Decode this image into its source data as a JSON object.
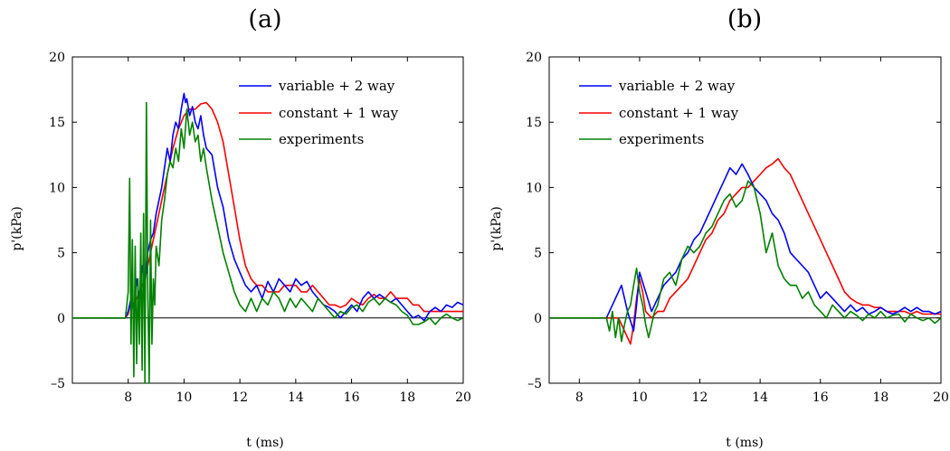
{
  "chart_data": [
    {
      "type": "line",
      "panel_label": "(a)",
      "xlabel": "t (ms)",
      "ylabel": "p'(kPa)",
      "xlim": [
        6.0,
        20.0
      ],
      "ylim": [
        -5,
        20
      ],
      "xticks": [
        8,
        10,
        12,
        14,
        16,
        18,
        20
      ],
      "yticks": [
        -5,
        0,
        5,
        10,
        15,
        20
      ],
      "ytick_labels": [
        "–5",
        "0",
        "5",
        "10",
        "15",
        "20"
      ],
      "legend_position": "top-right",
      "series": [
        {
          "name": "variable  + 2 way",
          "color": "#0000ff",
          "x": [
            6.0,
            7.9,
            8.0,
            8.1,
            8.2,
            8.3,
            8.4,
            8.5,
            8.6,
            8.7,
            8.8,
            8.9,
            9.0,
            9.2,
            9.4,
            9.5,
            9.6,
            9.7,
            9.8,
            9.9,
            10.0,
            10.05,
            10.1,
            10.2,
            10.3,
            10.4,
            10.5,
            10.6,
            10.7,
            10.8,
            11.0,
            11.2,
            11.4,
            11.6,
            11.8,
            12.0,
            12.2,
            12.4,
            12.6,
            12.8,
            13.0,
            13.2,
            13.4,
            13.6,
            13.8,
            14.0,
            14.2,
            14.4,
            14.6,
            14.8,
            15.0,
            15.2,
            15.4,
            15.6,
            15.8,
            16.0,
            16.2,
            16.4,
            16.6,
            16.8,
            17.0,
            17.2,
            17.4,
            17.6,
            17.8,
            18.0,
            18.2,
            18.4,
            18.6,
            18.8,
            19.0,
            19.2,
            19.4,
            19.6,
            19.8,
            20.0
          ],
          "y": [
            0,
            0,
            0.5,
            1.5,
            0.5,
            3.0,
            1.5,
            4.0,
            2.5,
            5.0,
            6.0,
            6.5,
            8.0,
            10.0,
            13.0,
            12.0,
            14.0,
            15.0,
            14.5,
            16.0,
            17.2,
            16.5,
            16.8,
            15.5,
            16.2,
            15.0,
            14.5,
            15.5,
            14.0,
            13.0,
            12.5,
            10.0,
            8.5,
            6.0,
            4.5,
            3.5,
            2.5,
            2.0,
            2.5,
            1.5,
            2.8,
            2.0,
            3.0,
            2.5,
            2.0,
            3.0,
            2.5,
            2.8,
            2.0,
            1.5,
            1.0,
            0.8,
            0.5,
            0.0,
            0.5,
            1.0,
            0.5,
            1.5,
            2.0,
            1.5,
            1.8,
            1.5,
            1.2,
            1.5,
            1.0,
            0.5,
            0.0,
            0.2,
            -0.2,
            0.5,
            0.8,
            0.5,
            1.0,
            0.8,
            1.2,
            1.0
          ]
        },
        {
          "name": "constant + 1 way",
          "color": "#ff0000",
          "x": [
            6.0,
            7.9,
            8.0,
            8.1,
            8.2,
            8.4,
            8.6,
            8.8,
            9.0,
            9.2,
            9.4,
            9.6,
            9.8,
            10.0,
            10.2,
            10.4,
            10.6,
            10.8,
            11.0,
            11.2,
            11.4,
            11.6,
            11.8,
            12.0,
            12.2,
            12.4,
            12.6,
            12.8,
            13.0,
            13.2,
            13.4,
            13.6,
            13.8,
            14.0,
            14.2,
            14.4,
            14.6,
            14.8,
            15.0,
            15.2,
            15.4,
            15.6,
            15.8,
            16.0,
            16.2,
            16.4,
            16.6,
            16.8,
            17.0,
            17.2,
            17.4,
            17.6,
            17.8,
            18.0,
            18.2,
            18.4,
            18.6,
            18.8,
            19.0,
            19.2,
            19.4,
            19.6,
            19.8,
            20.0
          ],
          "y": [
            0,
            0,
            0.3,
            1.5,
            1.0,
            2.0,
            3.0,
            5.0,
            7.0,
            9.0,
            11.0,
            13.0,
            14.5,
            15.5,
            16.0,
            16.0,
            16.4,
            16.5,
            16.0,
            15.0,
            13.5,
            11.0,
            8.5,
            6.0,
            4.0,
            3.0,
            2.5,
            2.5,
            2.0,
            2.0,
            2.0,
            2.5,
            2.5,
            2.5,
            2.0,
            2.0,
            2.5,
            2.0,
            1.5,
            1.0,
            1.0,
            0.8,
            1.0,
            1.5,
            1.2,
            1.0,
            1.5,
            1.8,
            1.5,
            1.5,
            2.0,
            1.5,
            1.5,
            1.5,
            1.0,
            1.0,
            0.5,
            0.5,
            0.5,
            0.5,
            0.5,
            0.5,
            0.5,
            0.5
          ]
        },
        {
          "name": "experiments",
          "color": "#008000",
          "x": [
            6.0,
            7.9,
            8.0,
            8.05,
            8.1,
            8.15,
            8.2,
            8.25,
            8.3,
            8.35,
            8.4,
            8.45,
            8.5,
            8.55,
            8.6,
            8.65,
            8.7,
            8.75,
            8.8,
            8.85,
            8.9,
            8.95,
            9.0,
            9.1,
            9.2,
            9.3,
            9.4,
            9.5,
            9.6,
            9.7,
            9.8,
            9.9,
            10.0,
            10.1,
            10.2,
            10.3,
            10.4,
            10.5,
            10.6,
            10.7,
            10.8,
            11.0,
            11.2,
            11.4,
            11.6,
            11.8,
            12.0,
            12.2,
            12.4,
            12.6,
            12.8,
            13.0,
            13.2,
            13.4,
            13.6,
            13.8,
            14.0,
            14.2,
            14.4,
            14.6,
            14.8,
            15.0,
            15.2,
            15.4,
            15.6,
            15.8,
            16.0,
            16.2,
            16.4,
            16.6,
            16.8,
            17.0,
            17.2,
            17.4,
            17.6,
            17.8,
            18.0,
            18.2,
            18.4,
            18.6,
            18.8,
            19.0,
            19.2,
            19.4,
            19.6,
            19.8,
            20.0
          ],
          "y": [
            0,
            0,
            2.0,
            10.7,
            -2.0,
            6.0,
            -4.5,
            5.5,
            -3.5,
            3.0,
            -2.0,
            6.5,
            -4.0,
            8.0,
            -5.0,
            16.5,
            2.0,
            -5.0,
            7.5,
            -2.0,
            3.0,
            1.0,
            5.5,
            4.0,
            7.5,
            9.0,
            11.0,
            12.0,
            11.5,
            13.0,
            12.0,
            14.5,
            13.0,
            16.0,
            14.0,
            15.0,
            13.5,
            14.0,
            12.0,
            13.0,
            11.5,
            9.0,
            7.0,
            5.0,
            3.5,
            2.0,
            1.0,
            0.5,
            1.5,
            0.5,
            1.5,
            1.0,
            2.0,
            1.5,
            0.5,
            1.5,
            0.8,
            1.5,
            1.0,
            0.5,
            1.5,
            1.0,
            0.5,
            0.0,
            0.5,
            0.3,
            0.8,
            1.0,
            0.5,
            1.2,
            1.5,
            1.0,
            1.5,
            1.2,
            1.0,
            0.5,
            0.2,
            -0.5,
            -0.5,
            -0.3,
            0.0,
            -0.5,
            0.0,
            0.3,
            0.0,
            -0.2,
            0.0
          ]
        },
        {
          "name": "",
          "color": "#000000",
          "x": [
            6.0,
            20.0
          ],
          "y": [
            0,
            0
          ]
        }
      ]
    },
    {
      "type": "line",
      "panel_label": "(b)",
      "xlabel": "t (ms)",
      "ylabel": "p'(kPa)",
      "xlim": [
        7.0,
        20.0
      ],
      "ylim": [
        -5,
        20
      ],
      "xticks": [
        8,
        10,
        12,
        14,
        16,
        18,
        20
      ],
      "yticks": [
        -5,
        0,
        5,
        10,
        15,
        20
      ],
      "ytick_labels": [
        "–5",
        "0",
        "5",
        "10",
        "15",
        "20"
      ],
      "legend_position": "top-left",
      "series": [
        {
          "name": "variable + 2 way",
          "color": "#0000ff",
          "x": [
            7.0,
            8.9,
            9.0,
            9.2,
            9.4,
            9.6,
            9.8,
            9.9,
            10.0,
            10.2,
            10.4,
            10.6,
            10.8,
            11.0,
            11.2,
            11.4,
            11.6,
            11.8,
            12.0,
            12.2,
            12.4,
            12.6,
            12.8,
            13.0,
            13.2,
            13.4,
            13.6,
            13.8,
            14.0,
            14.2,
            14.4,
            14.6,
            14.8,
            15.0,
            15.2,
            15.4,
            15.6,
            15.8,
            16.0,
            16.2,
            16.4,
            16.6,
            16.8,
            17.0,
            17.2,
            17.4,
            17.6,
            17.8,
            18.0,
            18.2,
            18.4,
            18.6,
            18.8,
            19.0,
            19.2,
            19.4,
            19.6,
            19.8,
            20.0
          ],
          "y": [
            0,
            0,
            0.5,
            1.5,
            2.5,
            0.5,
            -1.0,
            1.0,
            3.5,
            2.0,
            0.5,
            1.5,
            2.5,
            3.0,
            3.5,
            4.5,
            5.0,
            6.0,
            6.5,
            7.5,
            8.5,
            9.5,
            10.5,
            11.5,
            11.0,
            11.8,
            11.0,
            10.0,
            9.5,
            9.0,
            8.0,
            7.5,
            6.5,
            5.0,
            4.5,
            4.0,
            3.5,
            2.5,
            1.5,
            2.0,
            1.5,
            1.0,
            0.5,
            1.0,
            0.5,
            0.8,
            0.3,
            0.5,
            0.8,
            0.5,
            0.3,
            0.5,
            0.8,
            0.5,
            0.8,
            0.5,
            0.5,
            0.3,
            0.5
          ]
        },
        {
          "name": "constant + 1 way",
          "color": "#ff0000",
          "x": [
            7.0,
            9.3,
            9.4,
            9.6,
            9.7,
            9.8,
            9.9,
            10.0,
            10.1,
            10.2,
            10.4,
            10.6,
            10.8,
            11.0,
            11.2,
            11.4,
            11.6,
            11.8,
            12.0,
            12.2,
            12.4,
            12.6,
            12.8,
            13.0,
            13.2,
            13.4,
            13.6,
            13.8,
            14.0,
            14.2,
            14.4,
            14.6,
            14.8,
            15.0,
            15.2,
            15.4,
            15.6,
            15.8,
            16.0,
            16.2,
            16.4,
            16.6,
            16.8,
            17.0,
            17.2,
            17.4,
            17.6,
            17.8,
            18.0,
            18.2,
            18.4,
            18.6,
            18.8,
            19.0,
            19.2,
            19.4,
            19.6,
            19.8,
            20.0
          ],
          "y": [
            0,
            0,
            -0.5,
            -1.5,
            -2.0,
            -0.5,
            1.5,
            3.0,
            2.0,
            0.5,
            0.0,
            0.5,
            0.5,
            1.5,
            2.0,
            2.5,
            3.0,
            4.0,
            5.0,
            6.0,
            6.5,
            7.5,
            8.0,
            9.0,
            9.5,
            10.0,
            10.0,
            10.5,
            11.0,
            11.5,
            11.8,
            12.2,
            11.5,
            11.0,
            10.0,
            9.0,
            8.0,
            7.0,
            6.0,
            5.0,
            4.0,
            3.0,
            2.0,
            1.5,
            1.2,
            1.0,
            1.0,
            0.8,
            0.8,
            0.5,
            0.5,
            0.5,
            0.5,
            0.3,
            0.5,
            0.3,
            0.3,
            0.3,
            0.3
          ]
        },
        {
          "name": "experiments",
          "color": "#008000",
          "x": [
            7.0,
            8.9,
            9.0,
            9.1,
            9.2,
            9.3,
            9.4,
            9.5,
            9.6,
            9.7,
            9.8,
            9.9,
            10.0,
            10.1,
            10.2,
            10.3,
            10.4,
            10.5,
            10.6,
            10.7,
            10.8,
            11.0,
            11.2,
            11.4,
            11.6,
            11.8,
            12.0,
            12.2,
            12.4,
            12.6,
            12.8,
            13.0,
            13.2,
            13.4,
            13.6,
            13.8,
            14.0,
            14.2,
            14.4,
            14.6,
            14.8,
            15.0,
            15.2,
            15.4,
            15.6,
            15.8,
            16.0,
            16.2,
            16.4,
            16.6,
            16.8,
            17.0,
            17.2,
            17.4,
            17.6,
            17.8,
            18.0,
            18.2,
            18.4,
            18.6,
            18.8,
            19.0,
            19.2,
            19.4,
            19.6,
            19.8,
            20.0
          ],
          "y": [
            0,
            0,
            -1.0,
            0.5,
            -1.5,
            0.0,
            -1.8,
            -0.5,
            0.5,
            1.0,
            2.5,
            3.8,
            2.0,
            1.0,
            -0.5,
            -1.5,
            -0.5,
            0.5,
            1.0,
            2.0,
            3.0,
            3.5,
            2.5,
            4.5,
            5.5,
            5.0,
            5.5,
            6.5,
            7.0,
            8.0,
            9.0,
            9.5,
            8.5,
            9.0,
            10.5,
            10.0,
            8.0,
            5.0,
            6.5,
            4.0,
            3.0,
            2.5,
            2.5,
            1.5,
            2.0,
            1.0,
            0.5,
            0.0,
            1.0,
            0.5,
            0.0,
            0.5,
            0.2,
            -0.2,
            0.3,
            0.0,
            0.5,
            0.0,
            0.2,
            0.3,
            -0.3,
            0.3,
            0.0,
            -0.2,
            0.0,
            -0.4,
            0.0
          ]
        },
        {
          "name": "",
          "color": "#000000",
          "x": [
            7.0,
            20.0
          ],
          "y": [
            0,
            0
          ]
        }
      ]
    }
  ]
}
